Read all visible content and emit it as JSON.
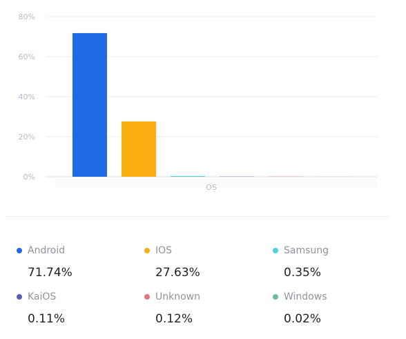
{
  "chart_data": {
    "type": "bar",
    "categories": [
      "Android",
      "IOS",
      "Samsung",
      "KaiOS",
      "Unknown",
      "Windows"
    ],
    "x_axis_label": "OS",
    "values": [
      71.74,
      27.63,
      0.35,
      0.11,
      0.12,
      0.02
    ],
    "value_labels": [
      "71.74%",
      "27.63%",
      "0.35%",
      "0.11%",
      "0.12%",
      "0.02%"
    ],
    "colors": [
      "#1f6be6",
      "#fbae11",
      "#47d4df",
      "#5b5fae",
      "#e2777a",
      "#6ebc9e"
    ],
    "ylim": [
      0,
      80
    ],
    "yticks": [
      0,
      20,
      40,
      60,
      80
    ],
    "ytick_labels": [
      "0%",
      "20%",
      "40%",
      "60%",
      "80%"
    ],
    "grid": true,
    "legend_placement": "bottom"
  },
  "legend": [
    {
      "name": "Android",
      "value": "71.74%"
    },
    {
      "name": "IOS",
      "value": "27.63%"
    },
    {
      "name": "Samsung",
      "value": "0.35%"
    },
    {
      "name": "KaiOS",
      "value": "0.11%"
    },
    {
      "name": "Unknown",
      "value": "0.12%"
    },
    {
      "name": "Windows",
      "value": "0.02%"
    }
  ]
}
